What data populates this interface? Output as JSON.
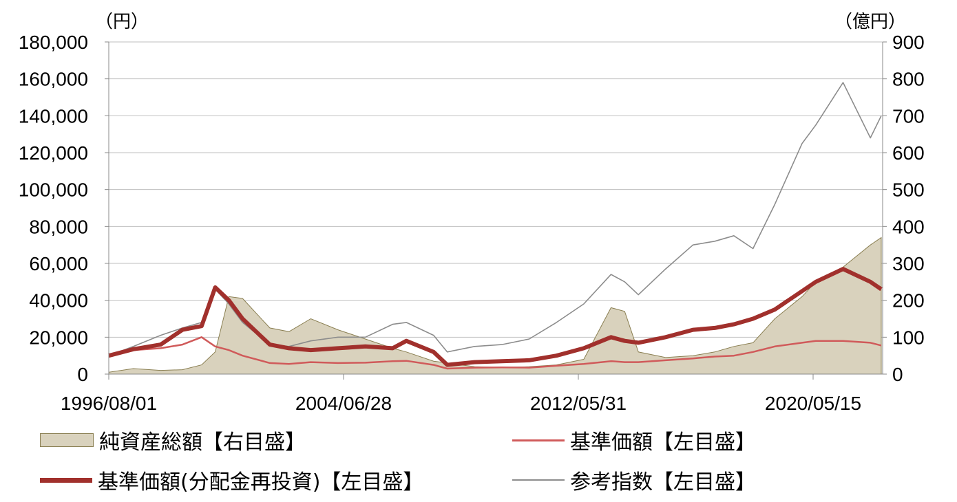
{
  "chart_data": {
    "type": "line",
    "left_unit": "（円）",
    "right_unit": "（億円）",
    "left_ticks": [
      "0",
      "20,000",
      "40,000",
      "60,000",
      "80,000",
      "100,000",
      "120,000",
      "140,000",
      "160,000",
      "180,000"
    ],
    "right_ticks": [
      "0",
      "100",
      "200",
      "300",
      "400",
      "500",
      "600",
      "700",
      "800",
      "900"
    ],
    "left_ylim": [
      0,
      180000
    ],
    "right_ylim": [
      0,
      900
    ],
    "x_tick_labels": [
      "1996/08/01",
      "2004/06/28",
      "2012/05/31",
      "2020/05/15"
    ],
    "x": [
      1996.6,
      1997.5,
      1998.5,
      1999.3,
      2000.0,
      2000.5,
      2001.0,
      2001.5,
      2002.5,
      2003.2,
      2004.0,
      2005.0,
      2006.0,
      2007.0,
      2007.5,
      2008.5,
      2009.0,
      2010.0,
      2011.0,
      2012.0,
      2013.0,
      2014.0,
      2015.0,
      2015.5,
      2016.0,
      2017.0,
      2018.0,
      2018.8,
      2019.5,
      2020.2,
      2021.0,
      2022.0,
      2022.5,
      2023.5,
      2024.5,
      2024.9
    ],
    "series": [
      {
        "name": "純資産総額【右目盛】",
        "axis": "right",
        "type": "area",
        "color": "#d9d2bd",
        "values": [
          5,
          15,
          10,
          12,
          25,
          60,
          210,
          205,
          125,
          115,
          150,
          120,
          95,
          70,
          60,
          35,
          30,
          20,
          18,
          20,
          25,
          40,
          180,
          170,
          60,
          45,
          50,
          60,
          75,
          85,
          150,
          210,
          250,
          290,
          350,
          370
        ]
      },
      {
        "name": "基準価額【左目盛】",
        "axis": "left",
        "type": "line",
        "color": "#d05a5a",
        "values": [
          10000,
          13000,
          14000,
          16000,
          20000,
          15000,
          13000,
          10000,
          6000,
          5500,
          6500,
          6000,
          6200,
          7000,
          7200,
          5000,
          3000,
          3500,
          3600,
          3500,
          4500,
          5500,
          7000,
          6500,
          6500,
          7500,
          8500,
          9500,
          10000,
          12000,
          15000,
          17000,
          18000,
          18000,
          17000,
          15500
        ]
      },
      {
        "name": "基準価額(分配金再投資)【左目盛】",
        "axis": "left",
        "type": "line",
        "color": "#a1302c",
        "values": [
          10000,
          13500,
          16000,
          24000,
          26000,
          47000,
          40000,
          30000,
          16000,
          14000,
          13000,
          14000,
          15000,
          14000,
          18000,
          12000,
          5000,
          6500,
          7000,
          7500,
          10000,
          14000,
          20000,
          18000,
          17000,
          20000,
          24000,
          25000,
          27000,
          30000,
          35000,
          45000,
          50000,
          57000,
          50000,
          46000
        ]
      },
      {
        "name": "参考指数【左目盛】",
        "axis": "left",
        "type": "line",
        "color": "#8c8c8c",
        "values": [
          10000,
          15000,
          21000,
          25000,
          28000,
          46000,
          38000,
          28000,
          16000,
          15000,
          18000,
          20000,
          20000,
          27000,
          28000,
          21000,
          12000,
          15000,
          16000,
          19000,
          28000,
          38000,
          54000,
          50000,
          43000,
          57000,
          70000,
          72000,
          75000,
          68000,
          92000,
          125000,
          135000,
          158000,
          128000,
          140000
        ]
      }
    ],
    "legend_position": "bottom",
    "grid": true
  }
}
